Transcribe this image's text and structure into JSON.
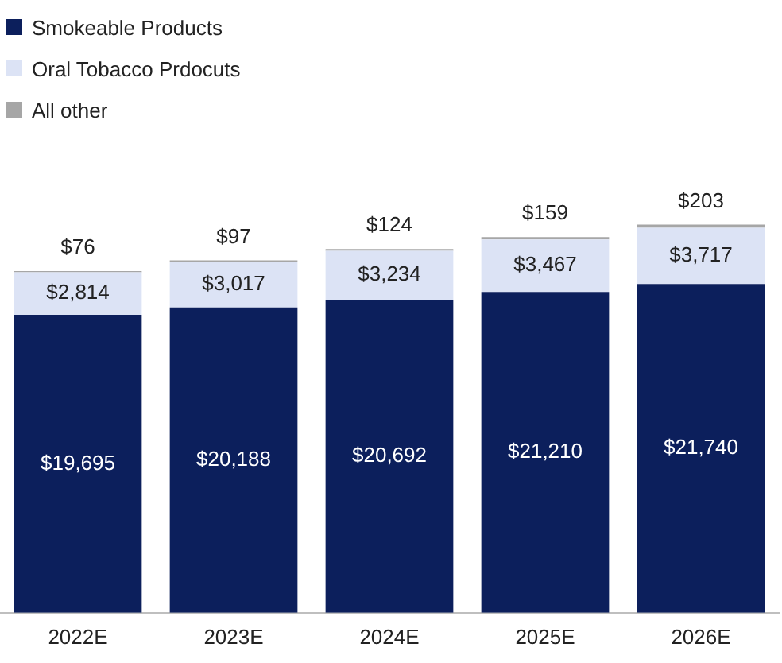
{
  "chart_data": {
    "type": "bar",
    "stacked": true,
    "legend": "top left",
    "grid": false,
    "categories": [
      "2022E",
      "2023E",
      "2024E",
      "2025E",
      "2026E"
    ],
    "series": [
      {
        "name": "Smokeable Products",
        "color": "#0c1f5c",
        "values": [
          19695,
          20188,
          20692,
          21210,
          21740
        ],
        "value_labels": [
          "$19,695",
          "$20,188",
          "$20,692",
          "$21,210",
          "$21,740"
        ]
      },
      {
        "name": "Oral Tobacco Prdocuts",
        "color": "#dce3f5",
        "values": [
          2814,
          3017,
          3234,
          3467,
          3717
        ],
        "value_labels": [
          "$2,814",
          "$3,017",
          "$3,234",
          "$3,467",
          "$3,717"
        ]
      },
      {
        "name": "All other",
        "color": "#a6a6a6",
        "values": [
          76,
          97,
          124,
          159,
          203
        ],
        "value_labels": [
          "$76",
          "$97",
          "$124",
          "$159",
          "$203"
        ]
      }
    ]
  }
}
